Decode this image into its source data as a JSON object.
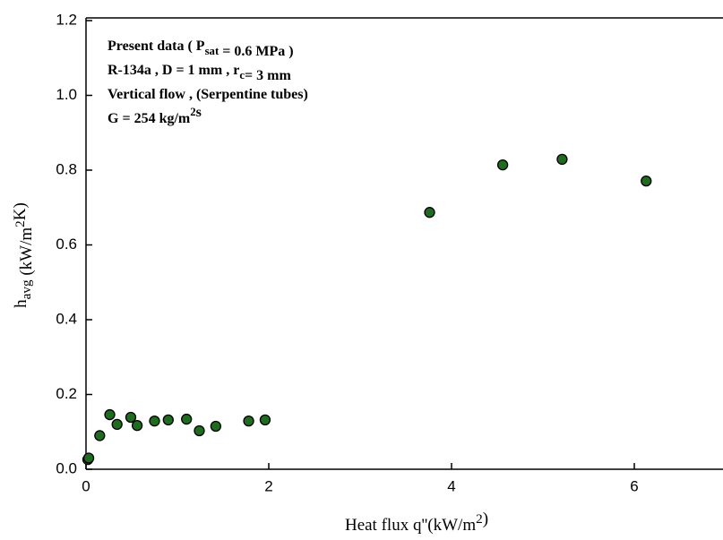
{
  "chart_data": {
    "type": "scatter",
    "xlabel": [
      "Heat flux q''(kW/m",
      {
        "sup": "2"
      },
      ")"
    ],
    "ylabel": [
      "h",
      {
        "sub": "avg"
      },
      " (kW/m",
      {
        "sup": "2"
      },
      "K)"
    ],
    "annotations": [
      [
        "Present data ( P",
        {
          "sub": "sat"
        },
        " = 0.6 MPa )"
      ],
      [
        "R-134a , D = 1 mm , r",
        {
          "sub": "c"
        },
        "= 3  mm"
      ],
      [
        "Vertical flow , (Serpentine tubes)"
      ],
      [
        "G = 254 kg/m",
        {
          "sup": "2"
        },
        "s"
      ]
    ],
    "x": [
      0.02,
      0.03,
      0.15,
      0.26,
      0.34,
      0.49,
      0.56,
      0.75,
      0.9,
      1.1,
      1.24,
      1.42,
      1.78,
      1.96,
      3.76,
      4.56,
      5.21,
      6.13
    ],
    "values": [
      0.026,
      0.03,
      0.09,
      0.146,
      0.12,
      0.139,
      0.117,
      0.129,
      0.132,
      0.134,
      0.103,
      0.115,
      0.129,
      0.132,
      0.687,
      0.814,
      0.829,
      0.771
    ],
    "color": "#1f6b1f",
    "xlim": [
      0,
      7
    ],
    "xticks": [
      0,
      2,
      4,
      6
    ],
    "ylim": [
      0,
      1.2
    ],
    "yticks": [
      {
        "value": 0,
        "label": "0.0"
      },
      0.2,
      0.4,
      0.6,
      0.8,
      {
        "value": 1,
        "label": "1.0"
      },
      1.2
    ]
  }
}
